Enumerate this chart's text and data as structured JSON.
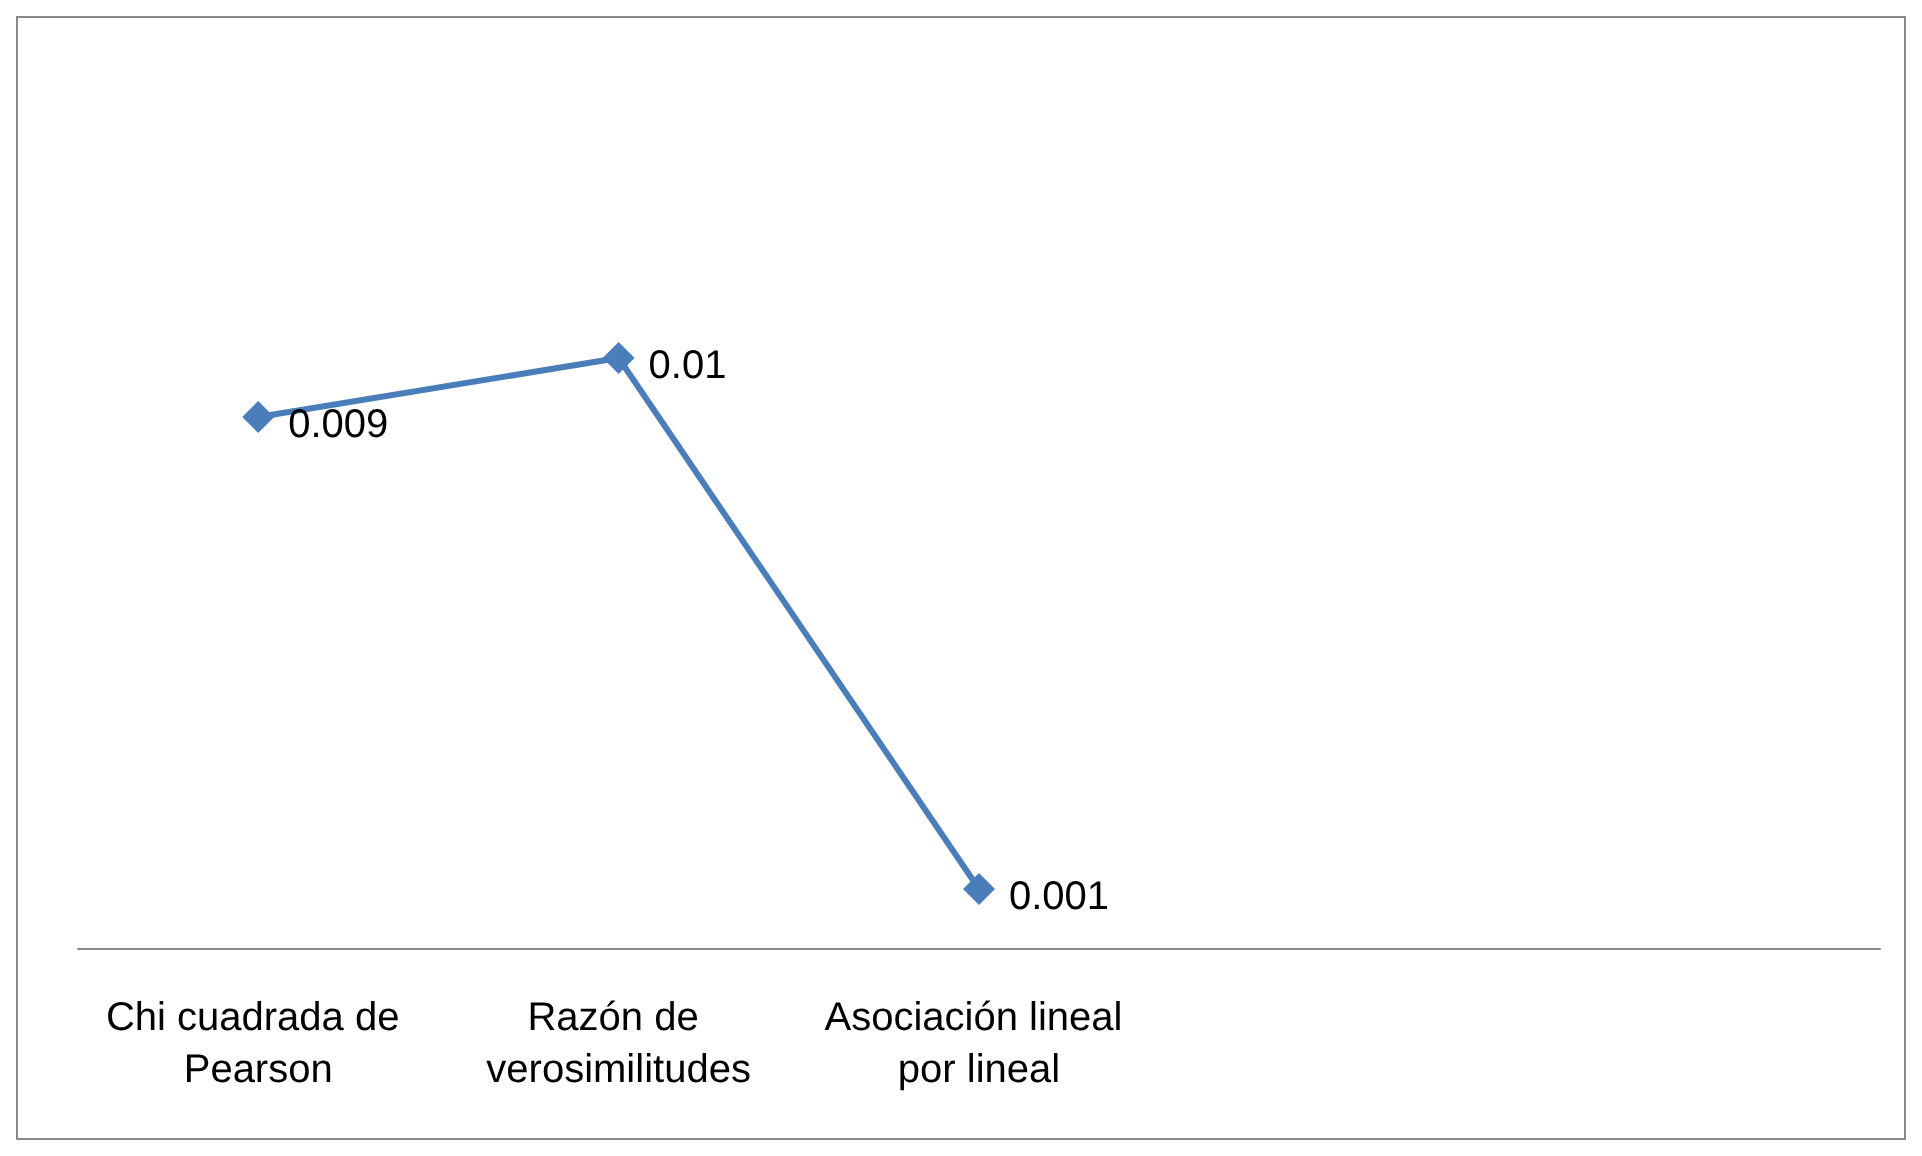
{
  "chart_data": {
    "type": "line",
    "categories": [
      "Chi cuadrada de Pearson",
      "Razón de verosimilitudes",
      "Asociación lineal por lineal",
      null,
      null
    ],
    "series": [
      {
        "color": "#4a7ebb",
        "values": [
          0.009,
          0.01,
          0.001,
          null,
          null
        ]
      }
    ],
    "data_labels": true,
    "marker": "diamond",
    "grid": false,
    "tick_labels": "x"
  }
}
